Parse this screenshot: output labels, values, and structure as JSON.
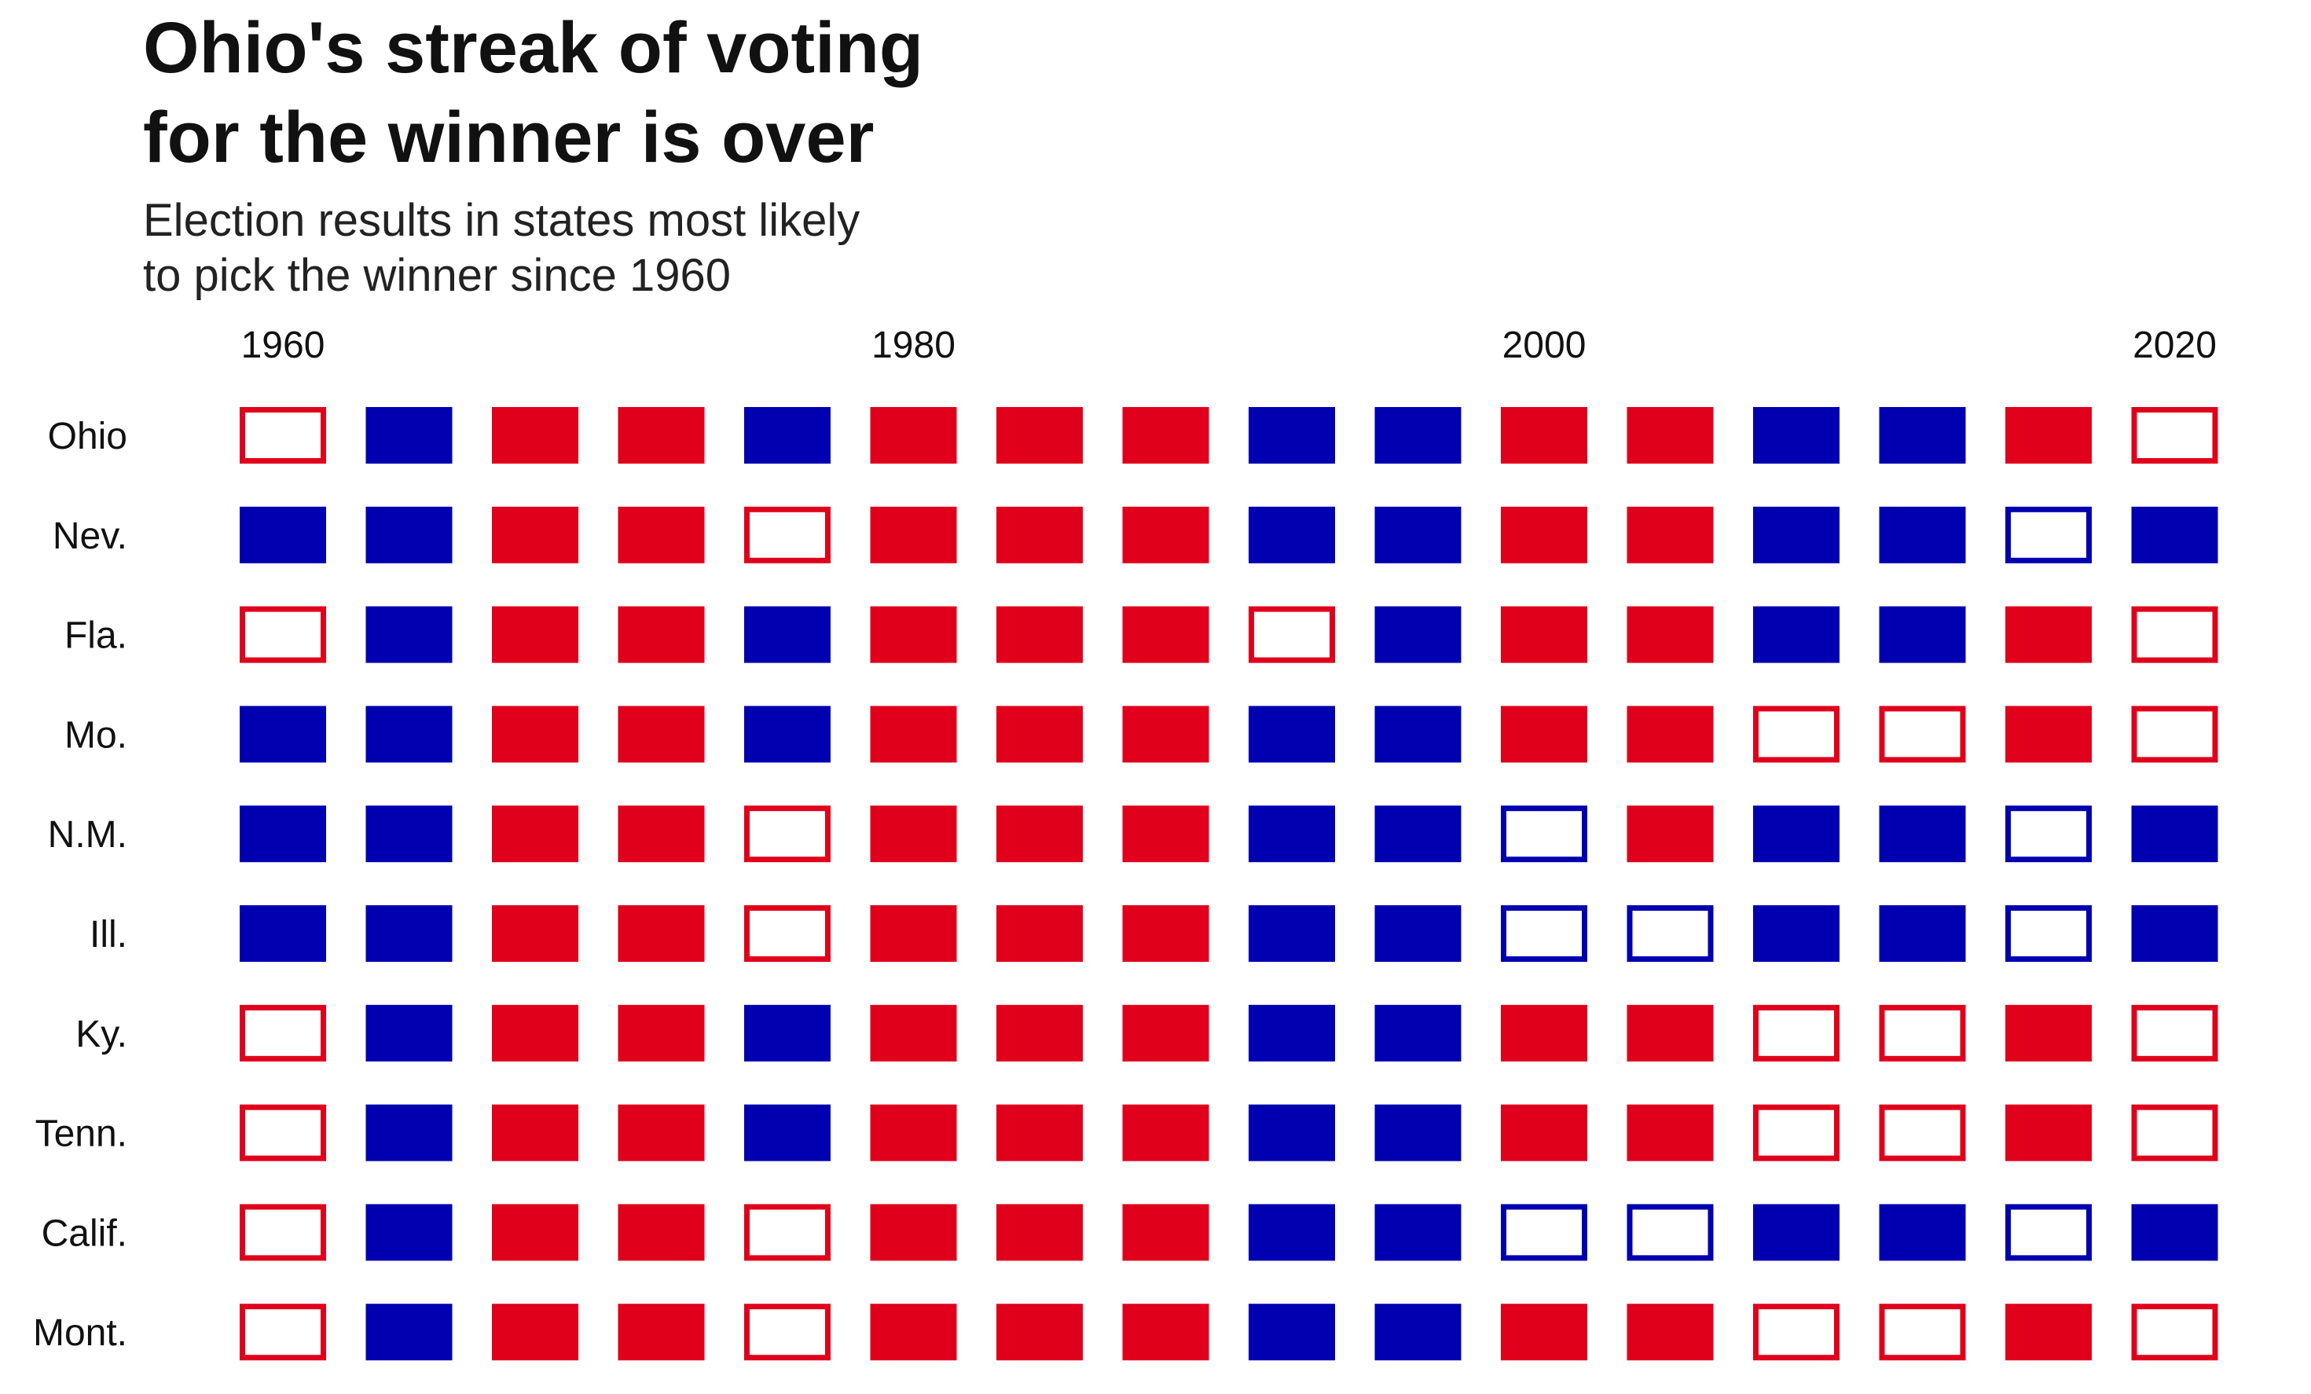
{
  "title_lines": [
    "Ohio's streak of voting",
    "for the winner is over"
  ],
  "subtitle_lines": [
    "Election results in states most likely",
    "to pick the winner since 1960"
  ],
  "colors": {
    "R": "#e0001b",
    "D": "#0000b0"
  },
  "chart_data": {
    "type": "heatmap",
    "title": "Ohio's streak of voting for the winner is over",
    "subtitle": "Election results in states most likely to pick the winner since 1960",
    "x_ticks": [
      "1960",
      "1980",
      "2000",
      "2020"
    ],
    "years": [
      1960,
      1964,
      1968,
      1972,
      1976,
      1980,
      1984,
      1988,
      1992,
      1996,
      2000,
      2004,
      2008,
      2012,
      2016,
      2020
    ],
    "encoding": "R = Republican, D = Democratic; filled square = state voted for the winner, outlined square = state did not vote for the winner",
    "rows": [
      {
        "state": "Ohio",
        "results": [
          "R-",
          "D",
          "R",
          "R",
          "D",
          "R",
          "R",
          "R",
          "D",
          "D",
          "R",
          "R",
          "D",
          "D",
          "R",
          "R-"
        ]
      },
      {
        "state": "Nev.",
        "results": [
          "D",
          "D",
          "R",
          "R",
          "R-",
          "R",
          "R",
          "R",
          "D",
          "D",
          "R",
          "R",
          "D",
          "D",
          "D-",
          "D"
        ]
      },
      {
        "state": "Fla.",
        "results": [
          "R-",
          "D",
          "R",
          "R",
          "D",
          "R",
          "R",
          "R",
          "R-",
          "D",
          "R",
          "R",
          "D",
          "D",
          "R",
          "R-"
        ]
      },
      {
        "state": "Mo.",
        "results": [
          "D",
          "D",
          "R",
          "R",
          "D",
          "R",
          "R",
          "R",
          "D",
          "D",
          "R",
          "R",
          "R-",
          "R-",
          "R",
          "R-"
        ]
      },
      {
        "state": "N.M.",
        "results": [
          "D",
          "D",
          "R",
          "R",
          "R-",
          "R",
          "R",
          "R",
          "D",
          "D",
          "D-",
          "R",
          "D",
          "D",
          "D-",
          "D"
        ]
      },
      {
        "state": "Ill.",
        "results": [
          "D",
          "D",
          "R",
          "R",
          "R-",
          "R",
          "R",
          "R",
          "D",
          "D",
          "D-",
          "D-",
          "D",
          "D",
          "D-",
          "D"
        ]
      },
      {
        "state": "Ky.",
        "results": [
          "R-",
          "D",
          "R",
          "R",
          "D",
          "R",
          "R",
          "R",
          "D",
          "D",
          "R",
          "R",
          "R-",
          "R-",
          "R",
          "R-"
        ]
      },
      {
        "state": "Tenn.",
        "results": [
          "R-",
          "D",
          "R",
          "R",
          "D",
          "R",
          "R",
          "R",
          "D",
          "D",
          "R",
          "R",
          "R-",
          "R-",
          "R",
          "R-"
        ]
      },
      {
        "state": "Calif.",
        "results": [
          "R-",
          "D",
          "R",
          "R",
          "R-",
          "R",
          "R",
          "R",
          "D",
          "D",
          "D-",
          "D-",
          "D",
          "D",
          "D-",
          "D"
        ]
      },
      {
        "state": "Mont.",
        "results": [
          "R-",
          "D",
          "R",
          "R",
          "R-",
          "R",
          "R",
          "R",
          "D",
          "D",
          "R",
          "R",
          "R-",
          "R-",
          "R",
          "R-"
        ]
      }
    ]
  }
}
